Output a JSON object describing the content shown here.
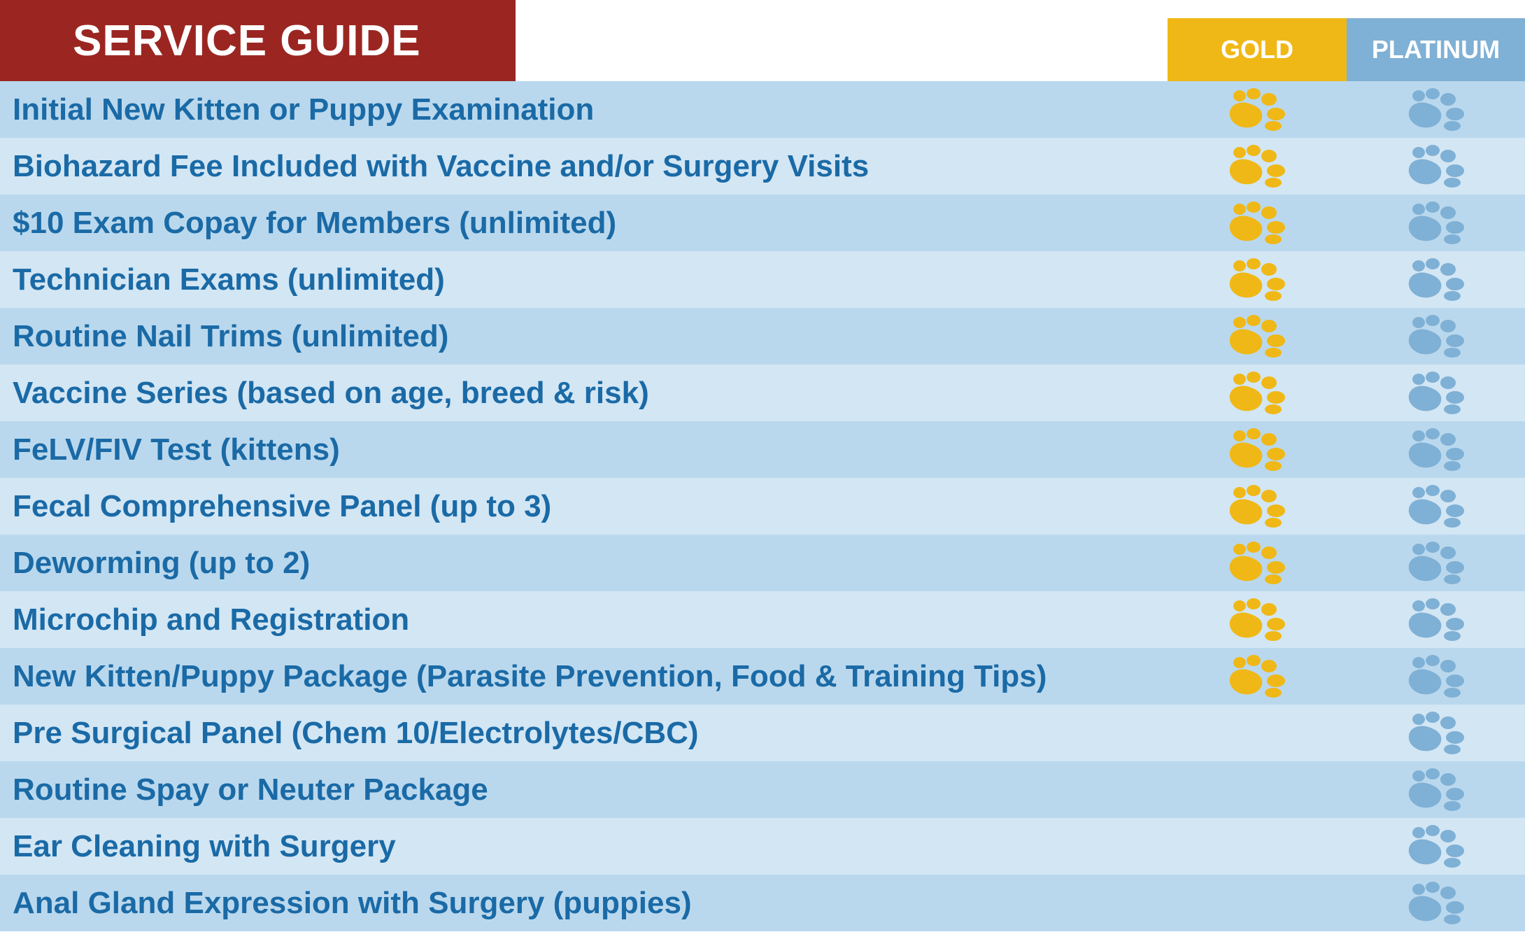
{
  "header": {
    "title": "SERVICE GUIDE",
    "gold_label": "GOLD",
    "platinum_label": "PLATINUM"
  },
  "colors": {
    "title_banner": "#9b2621",
    "gold": "#f0b816",
    "platinum": "#7fb0d5",
    "row_odd": "#bad8ed",
    "row_even": "#d3e6f4",
    "text": "#1a6aa6"
  },
  "icon": "paw-icon",
  "services": [
    {
      "label": "Initial New Kitten or Puppy Examination",
      "gold": true,
      "platinum": true
    },
    {
      "label": "Biohazard Fee Included with Vaccine and/or Surgery Visits",
      "gold": true,
      "platinum": true
    },
    {
      "label": "$10 Exam Copay for Members (unlimited)",
      "gold": true,
      "platinum": true
    },
    {
      "label": "Technician Exams (unlimited)",
      "gold": true,
      "platinum": true
    },
    {
      "label": "Routine Nail Trims (unlimited)",
      "gold": true,
      "platinum": true
    },
    {
      "label": "Vaccine Series (based on age, breed & risk)",
      "gold": true,
      "platinum": true
    },
    {
      "label": "FeLV/FIV Test (kittens)",
      "gold": true,
      "platinum": true
    },
    {
      "label": "Fecal Comprehensive Panel (up to 3)",
      "gold": true,
      "platinum": true
    },
    {
      "label": "Deworming (up to 2)",
      "gold": true,
      "platinum": true
    },
    {
      "label": "Microchip and Registration",
      "gold": true,
      "platinum": true
    },
    {
      "label": "New Kitten/Puppy Package (Parasite Prevention, Food & Training Tips)",
      "gold": true,
      "platinum": true
    },
    {
      "label": "Pre Surgical Panel (Chem 10/Electrolytes/CBC)",
      "gold": false,
      "platinum": true
    },
    {
      "label": "Routine Spay or Neuter Package",
      "gold": false,
      "platinum": true
    },
    {
      "label": "Ear Cleaning with Surgery",
      "gold": false,
      "platinum": true
    },
    {
      "label": "Anal Gland Expression with Surgery (puppies)",
      "gold": false,
      "platinum": true
    }
  ]
}
